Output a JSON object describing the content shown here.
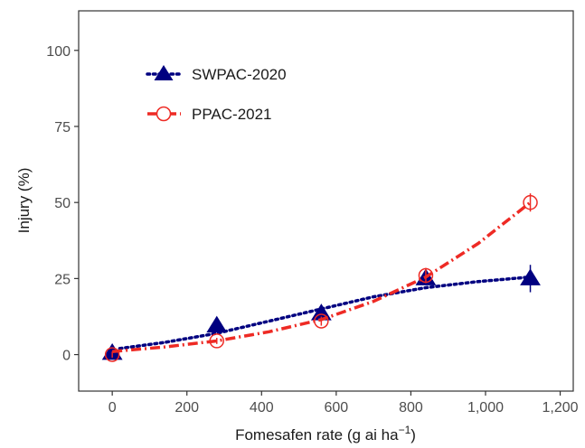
{
  "chart_data": {
    "type": "scatter",
    "title": "",
    "xlabel": "Fomesafen rate (g ai ha",
    "xlabel_superscript": "−1",
    "xlabel_suffix": ")",
    "ylabel": "Injury (%)",
    "xlim": [
      -90,
      1235
    ],
    "ylim": [
      -12,
      113
    ],
    "x_ticks": [
      0,
      200,
      400,
      600,
      800,
      1000,
      1200
    ],
    "x_tick_labels": [
      "0",
      "200",
      "400",
      "600",
      "800",
      "1,000",
      "1,200"
    ],
    "y_ticks": [
      0,
      25,
      50,
      75,
      100
    ],
    "y_tick_labels": [
      "0",
      "25",
      "50",
      "75",
      "100"
    ],
    "grid": false,
    "legend_position": "top-left",
    "series": [
      {
        "name": "SWPAC-2020",
        "color": "#000080",
        "marker": "filled-triangle",
        "line_style": "dotted",
        "x": [
          0,
          280,
          560,
          840,
          1120
        ],
        "y": [
          0.5,
          9.5,
          13.5,
          25,
          25
        ],
        "error": [
          1,
          1,
          1.5,
          2,
          4.5
        ],
        "fit_x": [
          20,
          140,
          280,
          420,
          560,
          700,
          840,
          980,
          1120
        ],
        "fit_y": [
          2,
          4,
          7,
          11,
          15,
          19,
          22,
          24,
          25.5
        ]
      },
      {
        "name": "PPAC-2021",
        "color": "#ee2a24",
        "marker": "open-circle",
        "line_style": "dashdot",
        "x": [
          0,
          280,
          560,
          840,
          1120
        ],
        "y": [
          0,
          4.5,
          11,
          26,
          50
        ],
        "error": [
          1,
          1,
          1.5,
          2.5,
          3
        ],
        "fit_x": [
          0,
          140,
          280,
          420,
          560,
          700,
          840,
          980,
          1120
        ],
        "fit_y": [
          1,
          2.5,
          4.5,
          7.5,
          11.5,
          17.5,
          25.5,
          36.5,
          50
        ]
      }
    ]
  }
}
